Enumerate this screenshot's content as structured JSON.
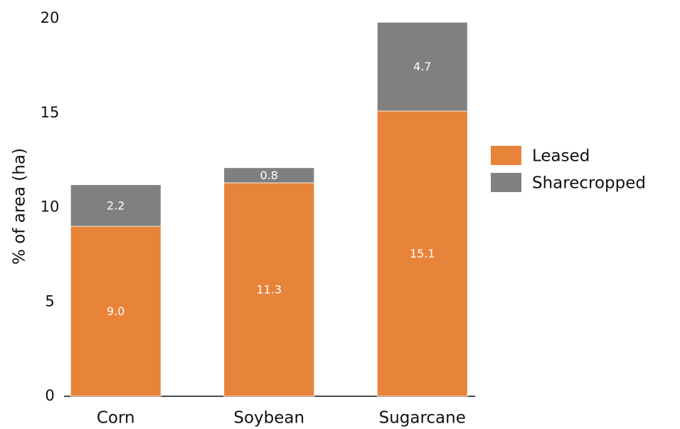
{
  "chart_data": {
    "type": "stacked_bar",
    "categories": [
      "Corn",
      "Soybean",
      "Sugarcane"
    ],
    "series": [
      {
        "name": "Leased",
        "color": "#e8833a",
        "values": [
          9.0,
          11.3,
          15.1
        ],
        "value_labels": [
          "9.0",
          "11.3",
          "15.1"
        ]
      },
      {
        "name": "Sharecropped",
        "color": "#808080",
        "values": [
          2.2,
          0.8,
          4.7
        ]
      }
    ],
    "y_label": "% of area (ha)",
    "ylim": [
      0,
      20
    ],
    "yticks": [
      0,
      5,
      10,
      15,
      20
    ],
    "grid": false,
    "legend": "right"
  }
}
